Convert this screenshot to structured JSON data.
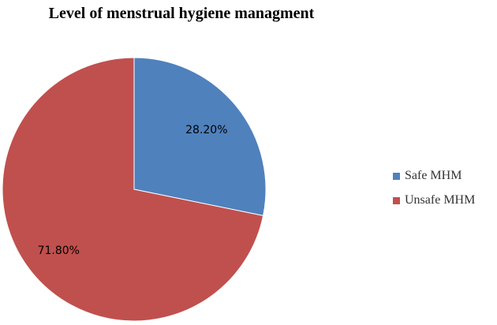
{
  "chart_data": {
    "type": "pie",
    "title": "Level of menstrual hygiene managment",
    "categories": [
      "Safe MHM",
      "Unsafe MHM"
    ],
    "values": [
      28.2,
      71.8
    ],
    "labels": [
      "28.20%",
      "71.80%"
    ],
    "colors": [
      "#4f81bd",
      "#c0504d"
    ],
    "start_angle_deg": 0,
    "direction": "clockwise",
    "legend_position": "right"
  }
}
